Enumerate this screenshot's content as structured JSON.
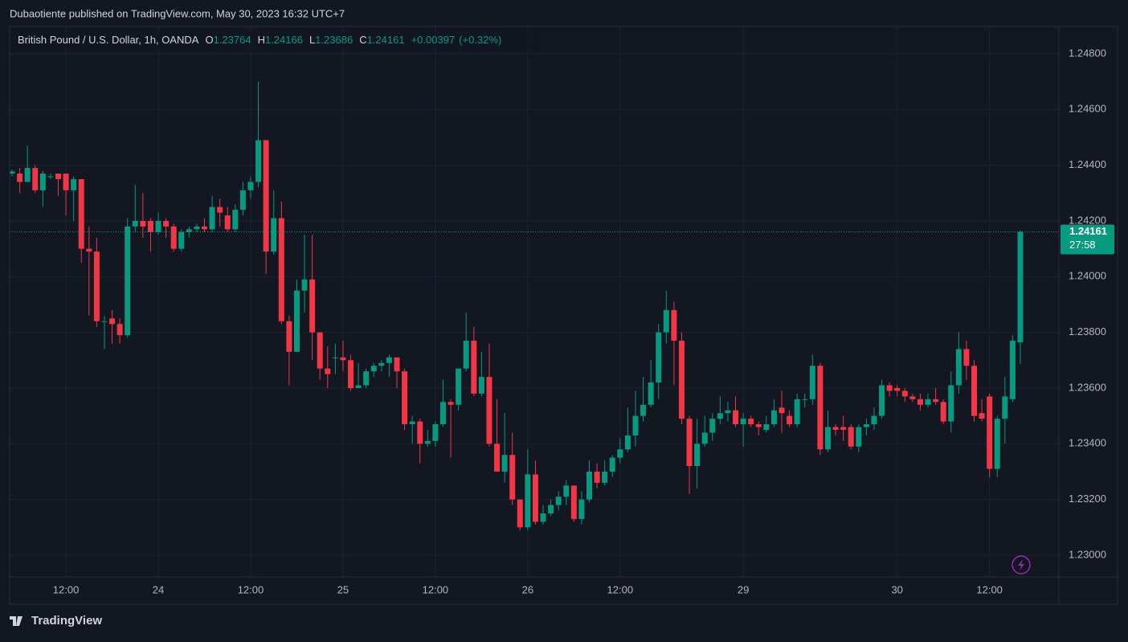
{
  "header": {
    "published": "Dubaotiente published on TradingView.com, May 30, 2023 16:32 UTC+7"
  },
  "footer": {
    "brand": "TradingView"
  },
  "chart_data": {
    "type": "candlestick",
    "title": "British Pound / U.S. Dollar, 1h, OANDA",
    "ohlc_labels": [
      "O",
      "H",
      "L",
      "C"
    ],
    "change": "+0.00397",
    "change_percent": "(+0.32%)",
    "countdown": "27:58",
    "up_color": "#089981",
    "down_color": "#f23645",
    "grid": true,
    "categories": [
      null,
      null,
      null,
      null,
      null,
      null,
      null,
      "12:00",
      null,
      null,
      null,
      null,
      null,
      null,
      null,
      null,
      null,
      null,
      null,
      "24",
      null,
      null,
      null,
      null,
      null,
      null,
      null,
      null,
      null,
      null,
      null,
      "12:00",
      null,
      null,
      null,
      null,
      null,
      null,
      null,
      null,
      null,
      null,
      null,
      "25",
      null,
      null,
      null,
      null,
      null,
      null,
      null,
      null,
      null,
      null,
      null,
      "12:00",
      null,
      null,
      null,
      null,
      null,
      null,
      null,
      null,
      null,
      null,
      null,
      "26",
      null,
      null,
      null,
      null,
      null,
      null,
      null,
      null,
      null,
      null,
      null,
      "12:00",
      null,
      null,
      null,
      null,
      null,
      null,
      null,
      null,
      null,
      null,
      null,
      null,
      null,
      null,
      null,
      "29",
      null,
      null,
      null,
      null,
      null,
      null,
      null,
      null,
      null,
      null,
      null,
      null,
      null,
      null,
      null,
      null,
      null,
      null,
      null,
      "30",
      null,
      null,
      null,
      null,
      null,
      null,
      null,
      null,
      null,
      null,
      null,
      "12:00",
      null,
      null,
      null,
      null
    ],
    "open": [
      1.2437,
      1.2437,
      1.2434,
      1.2439,
      1.2431,
      1.2436,
      1.2437,
      1.2437,
      1.2431,
      1.2435,
      1.241,
      1.2409,
      1.2384,
      1.2385,
      1.2383,
      1.2379,
      1.2418,
      1.242,
      1.242,
      1.2416,
      1.242,
      1.2418,
      1.241,
      1.2416,
      1.2417,
      1.2418,
      1.2417,
      1.2425,
      1.2422,
      1.2417,
      1.2424,
      1.2431,
      1.2434,
      1.2449,
      1.2409,
      1.2421,
      1.2384,
      1.2373,
      1.2395,
      1.2399,
      1.238,
      1.2367,
      1.2371,
      1.2371,
      1.237,
      1.236,
      1.2361,
      1.2366,
      1.2368,
      1.2369,
      1.2371,
      1.2366,
      1.2347,
      1.2348,
      1.234,
      1.2341,
      1.2347,
      1.2355,
      1.2354,
      1.2367,
      1.2377,
      1.2358,
      1.2364,
      1.234,
      1.233,
      1.2336,
      1.232,
      1.231,
      1.2329,
      1.2312,
      1.2315,
      1.2318,
      1.2321,
      1.2325,
      1.2313,
      1.232,
      1.233,
      1.2326,
      1.233,
      1.2335,
      1.2338,
      1.2343,
      1.235,
      1.2354,
      1.2362,
      1.238,
      1.2388,
      1.2377,
      1.2349,
      1.2332,
      1.234,
      1.2344,
      1.2349,
      1.2351,
      1.2352,
      1.2347,
      1.2349,
      1.2347,
      1.2345,
      1.2347,
      1.2353,
      1.235,
      1.2347,
      1.2356,
      1.2356,
      1.2368,
      1.2338,
      1.2346,
      1.2346,
      1.2346,
      1.2339,
      1.2346,
      1.2347,
      1.235,
      1.2361,
      1.236,
      1.2359,
      1.2357,
      1.2356,
      1.2354,
      1.2356,
      1.2355,
      1.2348,
      1.2361,
      1.2374,
      1.2368,
      1.2351,
      1.2357,
      1.2331,
      1.2349,
      1.2356,
      1.23764
    ],
    "high": [
      1.24385,
      1.2439,
      1.2447,
      1.244,
      1.2438,
      1.2437,
      1.2437,
      1.2437,
      1.2436,
      1.2435,
      1.2418,
      1.2414,
      1.2386,
      1.2388,
      1.2385,
      1.2421,
      1.2433,
      1.243,
      1.2421,
      1.2423,
      1.2421,
      1.2419,
      1.2417,
      1.2418,
      1.2419,
      1.2421,
      1.2429,
      1.2428,
      1.2425,
      1.2426,
      1.2434,
      1.2436,
      1.247,
      1.2449,
      1.2431,
      1.2427,
      1.2386,
      1.2399,
      1.2415,
      1.2415,
      1.238,
      1.2375,
      1.2376,
      1.2377,
      1.2372,
      1.2369,
      1.2367,
      1.2369,
      1.237,
      1.2372,
      1.2371,
      1.2367,
      1.235,
      1.2349,
      1.2345,
      1.2348,
      1.2363,
      1.2356,
      1.2367,
      1.2387,
      1.2382,
      1.2373,
      1.2376,
      1.2356,
      1.2351,
      1.2344,
      1.232,
      1.2338,
      1.2334,
      1.2318,
      1.232,
      1.2323,
      1.2327,
      1.2325,
      1.2323,
      1.2334,
      1.2333,
      1.2334,
      1.2336,
      1.2342,
      1.2353,
      1.2359,
      1.2364,
      1.237,
      1.2383,
      1.2395,
      1.2391,
      1.238,
      1.235,
      1.2349,
      1.235,
      1.2351,
      1.2357,
      1.2355,
      1.2357,
      1.2351,
      1.235,
      1.2348,
      1.235,
      1.2356,
      1.2359,
      1.2352,
      1.2358,
      1.2358,
      1.2372,
      1.2369,
      1.2352,
      1.2347,
      1.235,
      1.2347,
      1.2347,
      1.2349,
      1.2353,
      1.2363,
      1.2362,
      1.2361,
      1.236,
      1.2358,
      1.2358,
      1.2358,
      1.236,
      1.2356,
      1.2366,
      1.238,
      1.2377,
      1.237,
      1.2356,
      1.2358,
      1.235,
      1.2364,
      1.2379,
      1.24166
    ],
    "low": [
      1.2436,
      1.243,
      1.2434,
      1.243,
      1.2425,
      1.2435,
      1.2429,
      1.2422,
      1.242,
      1.2405,
      1.2386,
      1.2382,
      1.2374,
      1.2376,
      1.2376,
      1.2378,
      1.2416,
      1.2414,
      1.2409,
      1.2415,
      1.2414,
      1.2409,
      1.2409,
      1.2414,
      1.2416,
      1.2416,
      1.2416,
      1.2418,
      1.2416,
      1.2416,
      1.2422,
      1.2428,
      1.2432,
      1.2401,
      1.2408,
      1.2383,
      1.2361,
      1.2373,
      1.2387,
      1.237,
      1.2363,
      1.236,
      1.2365,
      1.2366,
      1.2359,
      1.236,
      1.236,
      1.2364,
      1.2366,
      1.2364,
      1.236,
      1.2345,
      1.234,
      1.2333,
      1.2339,
      1.2339,
      1.2346,
      1.2335,
      1.2352,
      1.2366,
      1.2357,
      1.2357,
      1.2339,
      1.233,
      1.2326,
      1.2318,
      1.2309,
      1.2309,
      1.2311,
      1.2311,
      1.2314,
      1.2316,
      1.2318,
      1.2312,
      1.2311,
      1.2319,
      1.2324,
      1.2325,
      1.2328,
      1.2333,
      1.2337,
      1.2339,
      1.2348,
      1.2353,
      1.2356,
      1.2376,
      1.2361,
      1.2347,
      1.2322,
      1.2324,
      1.2339,
      1.2341,
      1.2347,
      1.2348,
      1.2346,
      1.2339,
      1.2346,
      1.2343,
      1.2344,
      1.2346,
      1.2344,
      1.2346,
      1.2346,
      1.2353,
      1.2354,
      1.2336,
      1.2337,
      1.2343,
      1.2341,
      1.2338,
      1.2337,
      1.2343,
      1.2345,
      1.2349,
      1.2357,
      1.2357,
      1.2355,
      1.2355,
      1.2352,
      1.2353,
      1.2354,
      1.2347,
      1.2344,
      1.2358,
      1.2363,
      1.2348,
      1.2348,
      1.2328,
      1.2328,
      1.234,
      1.2355,
      1.23686
    ],
    "close": [
      1.24378,
      1.2434,
      1.2439,
      1.2431,
      1.2437,
      1.2436,
      1.2435,
      1.2431,
      1.2435,
      1.241,
      1.2409,
      1.2384,
      1.2384,
      1.2383,
      1.2379,
      1.2418,
      1.242,
      1.2418,
      1.2416,
      1.242,
      1.2418,
      1.241,
      1.2416,
      1.2417,
      1.2418,
      1.2417,
      1.2425,
      1.2423,
      1.2417,
      1.2424,
      1.2431,
      1.2434,
      1.2449,
      1.2409,
      1.2421,
      1.2384,
      1.2373,
      1.2395,
      1.2399,
      1.238,
      1.2367,
      1.2365,
      1.2371,
      1.237,
      1.236,
      1.2361,
      1.2366,
      1.2368,
      1.2369,
      1.2371,
      1.2366,
      1.2347,
      1.2348,
      1.234,
      1.2341,
      1.2347,
      1.2355,
      1.2354,
      1.2367,
      1.2377,
      1.2358,
      1.2364,
      1.234,
      1.233,
      1.2336,
      1.232,
      1.231,
      1.2329,
      1.2312,
      1.2315,
      1.2318,
      1.2321,
      1.2325,
      1.2313,
      1.232,
      1.233,
      1.2326,
      1.233,
      1.2335,
      1.2338,
      1.2343,
      1.235,
      1.2354,
      1.2362,
      1.238,
      1.2388,
      1.2377,
      1.2349,
      1.2332,
      1.234,
      1.2344,
      1.2349,
      1.2351,
      1.2352,
      1.2347,
      1.2349,
      1.2347,
      1.2346,
      1.2347,
      1.2352,
      1.2351,
      1.2347,
      1.2356,
      1.2356,
      1.2368,
      1.2338,
      1.2346,
      1.2345,
      1.2345,
      1.2339,
      1.2346,
      1.2347,
      1.235,
      1.2361,
      1.2359,
      1.2359,
      1.2357,
      1.2356,
      1.2354,
      1.2356,
      1.2355,
      1.2348,
      1.2361,
      1.2374,
      1.2368,
      1.235,
      1.2349,
      1.2331,
      1.2349,
      1.2357,
      1.2377,
      1.24161
    ],
    "ylim": [
      1.22922,
      1.24898
    ],
    "yticks": [
      {
        "value": 1.23,
        "label": "1.23000"
      },
      {
        "value": 1.232,
        "label": "1.23200"
      },
      {
        "value": 1.234,
        "label": "1.23400"
      },
      {
        "value": 1.236,
        "label": "1.23600"
      },
      {
        "value": 1.238,
        "label": "1.23800"
      },
      {
        "value": 1.24,
        "label": "1.24000"
      },
      {
        "value": 1.242,
        "label": "1.24200"
      },
      {
        "value": 1.244,
        "label": "1.24400"
      },
      {
        "value": 1.246,
        "label": "1.24600"
      },
      {
        "value": 1.248,
        "label": "1.24800"
      }
    ]
  }
}
